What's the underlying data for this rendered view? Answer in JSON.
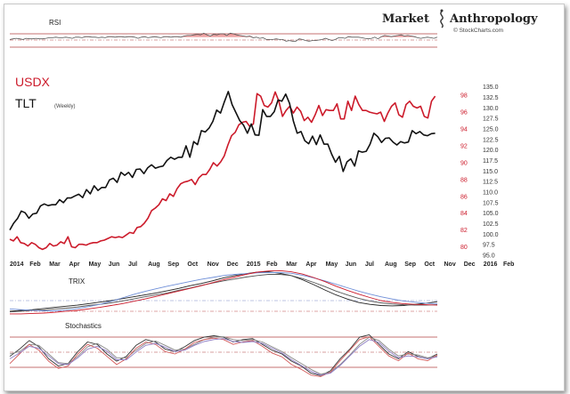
{
  "header": {
    "brand_left": "Market",
    "brand_right": "Anthropology",
    "credit": "© StockCharts.com"
  },
  "rsi_panel": {
    "label": "RSI"
  },
  "main_panel": {
    "label_usdx": "USDX",
    "label_tlt": "TLT",
    "label_weekly": "(Weekly)"
  },
  "trix_panel": {
    "label": "TRIX"
  },
  "stoch_panel": {
    "label": "Stochastics"
  },
  "colors": {
    "usdx": "#cc1a2a",
    "tlt": "#111111",
    "rsi_fill": "#e05a5a",
    "trix_blue": "#6f8fd8",
    "stoch_red": "#d35a5a",
    "stoch_purple": "#8f7fc6",
    "grid_red": "#b04040"
  },
  "chart_data": {
    "type": "line",
    "x_tick_labels": [
      "2014",
      "Feb",
      "Mar",
      "Apr",
      "May",
      "Jun",
      "Jul",
      "Aug",
      "Sep",
      "Oct",
      "Nov",
      "Dec",
      "2015",
      "Feb",
      "Mar",
      "Apr",
      "May",
      "Jun",
      "Jul",
      "Aug",
      "Sep",
      "Oct",
      "Nov",
      "Dec",
      "2016",
      "Feb"
    ],
    "y_right_tlt": {
      "ticks": [
        "135.0",
        "132.5",
        "130.0",
        "127.5",
        "125.0",
        "122.5",
        "120.0",
        "117.5",
        "115.0",
        "112.5",
        "110.0",
        "107.5",
        "105.0",
        "102.5",
        "100.0",
        "97.5",
        "95.0"
      ],
      "range": [
        95.0,
        136.0
      ]
    },
    "y_left_usdx": {
      "ticks": [
        "98",
        "96",
        "94",
        "92",
        "90",
        "88",
        "86",
        "84",
        "82",
        "80"
      ],
      "range": [
        79.0,
        99.5
      ]
    },
    "series": [
      {
        "name": "USDX",
        "axis": "usdx",
        "values": [
          80.9,
          80.7,
          81.2,
          80.5,
          80.4,
          80.1,
          80.5,
          80.3,
          79.9,
          79.7,
          79.9,
          80.4,
          80.1,
          80.2,
          80.6,
          80.4,
          81.2,
          80.0,
          79.9,
          80.3,
          80.3,
          80.2,
          80.4,
          80.5,
          80.5,
          80.7,
          80.8,
          81.0,
          81.2,
          81.1,
          81.2,
          81.1,
          81.4,
          81.7,
          81.6,
          82.3,
          82.4,
          82.8,
          83.4,
          84.3,
          84.6,
          85.0,
          85.7,
          85.5,
          86.3,
          86.0,
          86.9,
          87.5,
          87.7,
          87.8,
          88.0,
          87.4,
          88.2,
          88.6,
          88.6,
          89.2,
          90.0,
          89.6,
          90.1,
          90.8,
          92.1,
          93.2,
          93.6,
          94.5,
          94.8,
          94.9,
          94.3,
          94.6,
          98.2,
          97.9,
          96.8,
          96.6,
          97.1,
          98.4,
          97.3,
          95.5,
          96.2,
          96.7,
          95.9,
          96.6,
          96.1,
          95.0,
          95.4,
          94.8,
          95.7,
          96.8,
          95.6,
          96.3,
          96.2,
          96.2,
          97.0,
          95.2,
          95.2,
          97.3,
          96.2,
          97.9,
          96.9,
          96.2,
          96.2,
          96.0,
          95.9,
          95.8,
          96.0,
          94.9,
          95.9,
          96.7,
          97.1,
          95.7,
          95.4,
          96.9,
          97.3,
          96.7,
          96.5,
          96.7,
          95.5,
          95.3,
          97.3,
          97.9
        ]
      },
      {
        "name": "TLT",
        "axis": "tlt",
        "values": [
          101.0,
          102.6,
          103.7,
          105.5,
          105.1,
          103.8,
          104.8,
          105.0,
          106.7,
          107.2,
          106.8,
          107.0,
          107.0,
          108.2,
          107.5,
          108.6,
          108.6,
          109.1,
          109.5,
          108.7,
          110.6,
          109.6,
          111.5,
          110.4,
          111.1,
          111.1,
          112.9,
          113.3,
          112.3,
          114.7,
          114.0,
          114.7,
          113.5,
          115.4,
          115.5,
          114.4,
          115.8,
          116.5,
          115.7,
          116.0,
          116.2,
          117.5,
          118.3,
          117.8,
          118.3,
          118.3,
          121.0,
          118.3,
          122.0,
          121.3,
          124.6,
          124.3,
          125.2,
          126.8,
          129.5,
          128.8,
          131.5,
          133.9,
          130.8,
          128.9,
          127.0,
          125.9,
          124.0,
          126.2,
          123.6,
          123.5,
          129.6,
          128.0,
          128.0,
          129.1,
          131.9,
          131.6,
          133.3,
          131.1,
          126.9,
          124.0,
          124.4,
          122.2,
          121.5,
          123.3,
          121.3,
          123.6,
          121.4,
          121.4,
          119.0,
          117.1,
          118.5,
          114.9,
          117.2,
          117.9,
          116.2,
          119.8,
          119.5,
          119.7,
          121.4,
          124.0,
          123.2,
          121.8,
          122.8,
          122.9,
          121.9,
          121.2,
          122.0,
          121.7,
          121.9,
          124.6,
          123.9,
          124.4,
          123.6,
          123.4,
          123.9,
          124.0
        ]
      }
    ],
    "rsi": {
      "label": "RSI",
      "values": [
        46,
        47,
        48,
        47,
        46,
        48,
        47,
        47,
        48,
        47,
        47,
        48,
        49,
        49,
        50,
        49,
        49,
        50,
        49,
        48,
        50,
        50,
        49,
        51,
        51,
        50,
        50,
        49,
        50,
        49,
        51,
        51,
        50,
        51,
        51,
        50,
        51,
        51,
        50,
        48,
        50,
        51,
        49,
        50,
        51,
        50,
        49,
        51,
        51,
        50,
        51,
        51,
        50,
        52,
        53,
        53,
        54,
        55,
        54,
        57,
        54,
        52,
        55,
        54,
        56,
        56,
        53,
        57,
        56,
        54,
        53,
        52,
        51,
        52,
        49,
        50,
        48,
        49,
        46,
        46,
        46,
        47,
        46,
        46,
        43,
        44,
        43,
        43,
        47,
        46,
        44,
        43,
        44,
        44,
        45,
        46,
        48,
        46,
        44,
        46,
        49,
        49,
        48,
        51,
        50,
        50,
        50,
        49,
        48,
        47,
        48,
        50,
        47,
        51,
        53,
        52,
        51,
        52,
        53,
        54,
        52,
        53,
        52,
        51,
        49,
        48,
        49,
        50,
        49,
        48,
        50
      ],
      "ref_levels": [
        70,
        50,
        30
      ]
    },
    "trix": {
      "label": "TRIX",
      "lines": [
        {
          "values": [
            -0.28,
            -0.26,
            -0.24,
            -0.21,
            -0.18,
            -0.15,
            -0.12,
            -0.08,
            -0.04,
            0.0,
            0.05,
            0.1,
            0.15,
            0.2,
            0.26,
            0.32,
            0.39,
            0.45,
            0.52,
            0.6,
            0.66,
            0.71,
            0.75,
            0.76,
            0.72,
            0.66,
            0.55,
            0.42,
            0.28,
            0.15,
            0.04,
            -0.05,
            -0.1,
            -0.13,
            -0.14,
            -0.13,
            -0.1,
            -0.07,
            -0.03
          ]
        },
        {
          "values": [
            -0.3,
            -0.28,
            -0.26,
            -0.25,
            -0.22,
            -0.2,
            -0.17,
            -0.13,
            -0.1,
            -0.06,
            -0.01,
            0.04,
            0.1,
            0.15,
            0.2,
            0.27,
            0.33,
            0.4,
            0.46,
            0.52,
            0.57,
            0.62,
            0.66,
            0.69,
            0.69,
            0.66,
            0.58,
            0.48,
            0.37,
            0.25,
            0.15,
            0.06,
            -0.01,
            -0.06,
            -0.09,
            -0.11,
            -0.12,
            -0.12,
            -0.11
          ]
        },
        {
          "values": [
            -0.22,
            -0.24,
            -0.26,
            -0.27,
            -0.27,
            -0.25,
            -0.21,
            -0.16,
            -0.1,
            -0.02,
            0.07,
            0.16,
            0.24,
            0.31,
            0.38,
            0.44,
            0.5,
            0.56,
            0.61,
            0.66,
            0.69,
            0.71,
            0.73,
            0.74,
            0.74,
            0.72,
            0.67,
            0.6,
            0.52,
            0.43,
            0.34,
            0.25,
            0.17,
            0.1,
            0.04,
            -0.01,
            -0.04,
            -0.07,
            -0.08
          ]
        },
        {
          "values": [
            -0.35,
            -0.35,
            -0.34,
            -0.33,
            -0.31,
            -0.28,
            -0.26,
            -0.22,
            -0.18,
            -0.13,
            -0.08,
            -0.02,
            0.04,
            0.11,
            0.18,
            0.25,
            0.32,
            0.39,
            0.47,
            0.55,
            0.62,
            0.69,
            0.75,
            0.78,
            0.79,
            0.76,
            0.7,
            0.61,
            0.5,
            0.38,
            0.27,
            0.17,
            0.08,
            0.0,
            -0.05,
            -0.08,
            -0.1,
            -0.11,
            -0.12
          ]
        }
      ]
    },
    "stochastics": {
      "label": "Stochastics",
      "ref_levels": [
        80,
        50,
        20
      ],
      "lines": [
        {
          "values": [
            45,
            60,
            78,
            65,
            40,
            25,
            30,
            55,
            75,
            70,
            50,
            35,
            45,
            68,
            80,
            75,
            60,
            55,
            65,
            78,
            85,
            88,
            85,
            75,
            80,
            82,
            70,
            58,
            50,
            35,
            25,
            10,
            5,
            15,
            40,
            60,
            85,
            90,
            70,
            50,
            40,
            55,
            45,
            40,
            50
          ]
        },
        {
          "values": [
            50,
            55,
            70,
            68,
            50,
            32,
            30,
            45,
            65,
            72,
            60,
            42,
            42,
            58,
            72,
            77,
            68,
            58,
            60,
            70,
            80,
            85,
            86,
            80,
            78,
            80,
            75,
            65,
            55,
            42,
            30,
            18,
            8,
            12,
            28,
            48,
            70,
            85,
            78,
            60,
            46,
            50,
            48,
            42,
            46
          ]
        },
        {
          "values": [
            30,
            50,
            70,
            58,
            35,
            20,
            25,
            50,
            70,
            62,
            45,
            28,
            40,
            62,
            75,
            70,
            55,
            50,
            60,
            74,
            80,
            83,
            80,
            70,
            75,
            78,
            66,
            52,
            44,
            28,
            18,
            6,
            3,
            12,
            36,
            58,
            80,
            86,
            66,
            46,
            36,
            52,
            40,
            36,
            48
          ]
        },
        {
          "values": [
            40,
            52,
            66,
            62,
            46,
            30,
            28,
            42,
            60,
            66,
            56,
            38,
            38,
            54,
            68,
            72,
            64,
            55,
            58,
            68,
            76,
            80,
            82,
            76,
            74,
            76,
            72,
            62,
            52,
            38,
            26,
            14,
            6,
            10,
            26,
            46,
            66,
            80,
            74,
            56,
            42,
            46,
            44,
            40,
            44
          ]
        }
      ]
    }
  }
}
